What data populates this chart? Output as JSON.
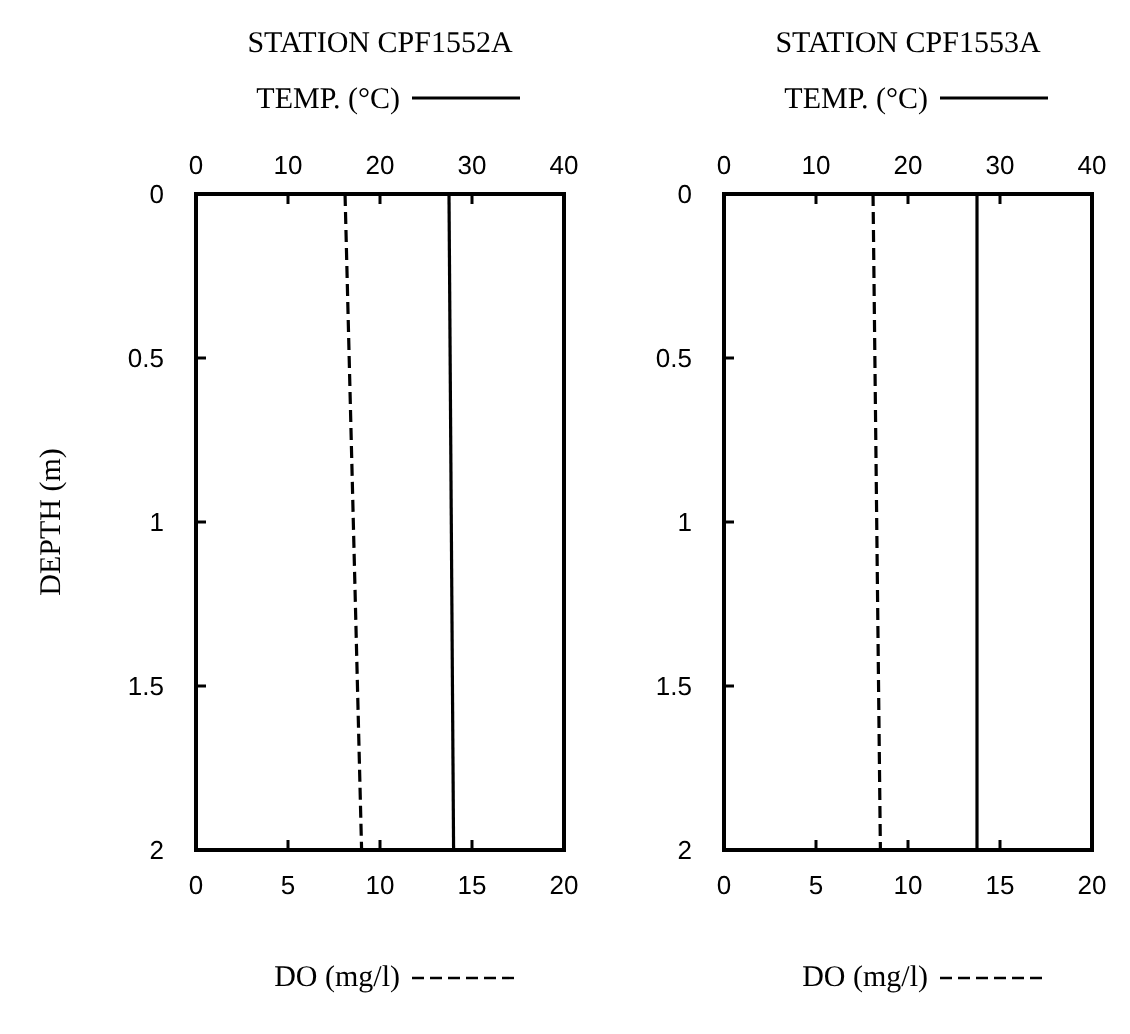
{
  "chart_data": [
    {
      "type": "line",
      "title": "STATION CPF1552A",
      "ylabel": "DEPTH (m)",
      "xlabel": "DO (mg/l)",
      "x2label": "TEMP. (°C)",
      "xlim": [
        0,
        20
      ],
      "xticks": [
        0,
        5,
        10,
        15,
        20
      ],
      "x2lim": [
        0,
        40
      ],
      "x2ticks": [
        0,
        10,
        20,
        30,
        40
      ],
      "ylim": [
        2,
        0
      ],
      "yticks": [
        0,
        0.5,
        1,
        1.5,
        2
      ],
      "series": [
        {
          "color": "#000000",
          "line_style": "solid",
          "axis": "x2",
          "x": [
            27.5,
            28
          ],
          "values": [
            0,
            2
          ]
        },
        {
          "color": "#000000",
          "line_style": "dashed",
          "x": [
            8.1,
            9.0
          ],
          "values": [
            0,
            2
          ]
        }
      ]
    },
    {
      "type": "line",
      "title": "STATION CPF1553A",
      "xlabel": "DO (mg/l)",
      "x2label": "TEMP. (°C)",
      "xlim": [
        0,
        20
      ],
      "xticks": [
        0,
        5,
        10,
        15,
        20
      ],
      "x2lim": [
        0,
        40
      ],
      "x2ticks": [
        0,
        10,
        20,
        30,
        40
      ],
      "ylim": [
        2,
        0
      ],
      "yticks": [
        0,
        0.5,
        1,
        1.5,
        2
      ],
      "series": [
        {
          "color": "#000000",
          "line_style": "solid",
          "axis": "x2",
          "x": [
            27.5,
            27.5
          ],
          "values": [
            0,
            2
          ]
        },
        {
          "color": "#000000",
          "line_style": "dashed",
          "x": [
            8.1,
            8.5
          ],
          "values": [
            0,
            2
          ]
        }
      ]
    }
  ]
}
